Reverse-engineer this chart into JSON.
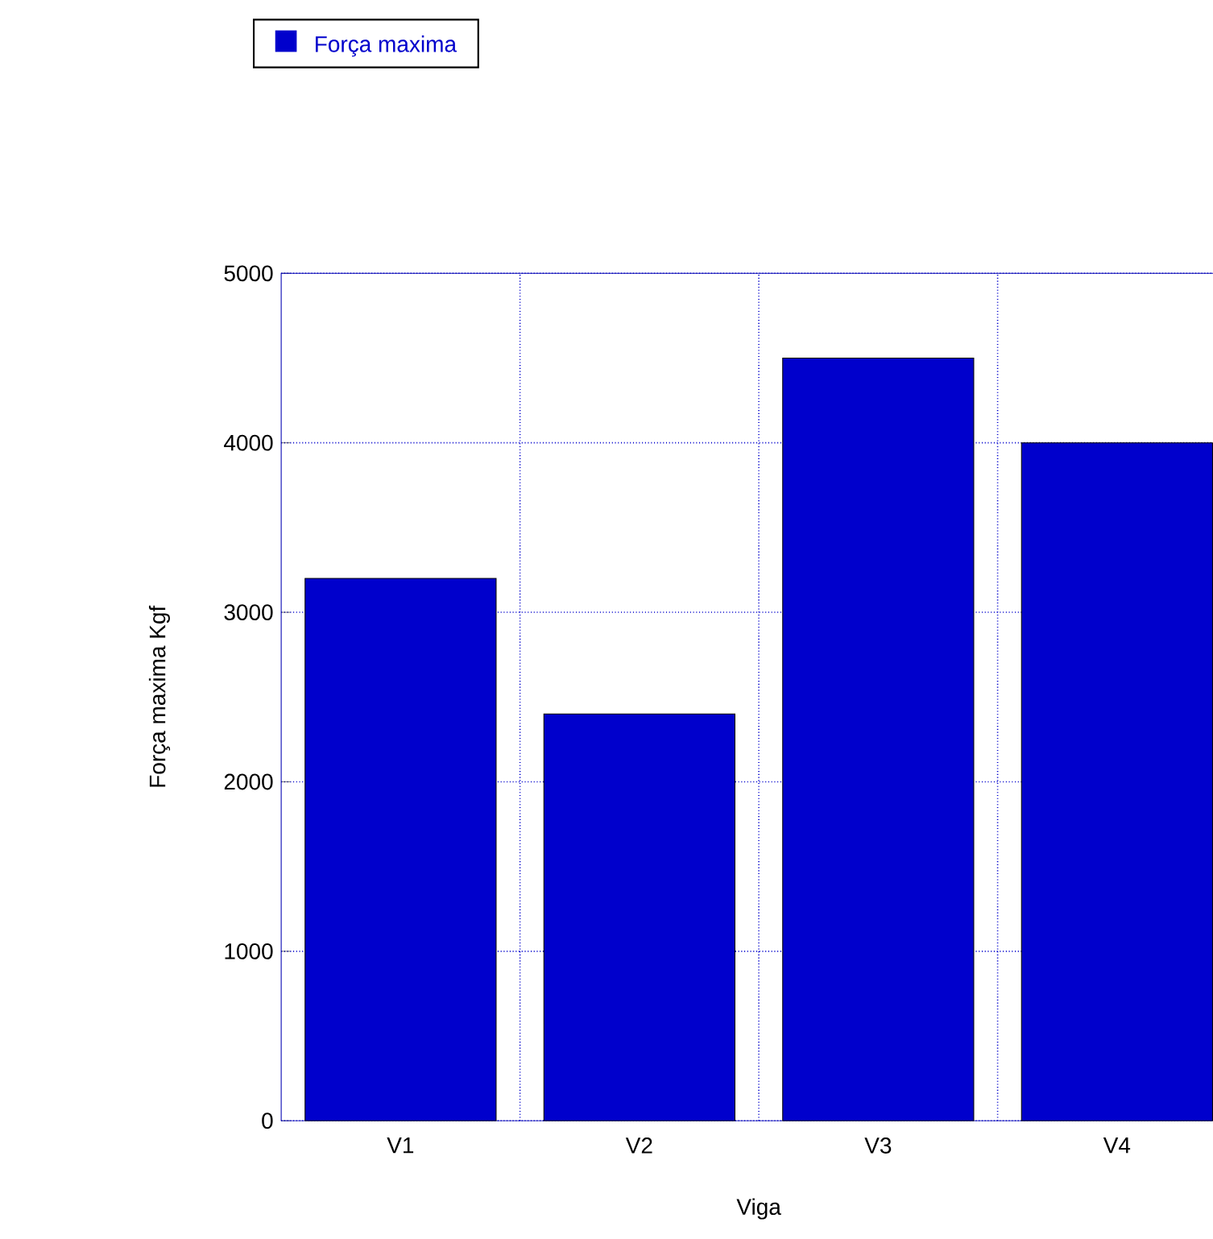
{
  "chart_data": {
    "type": "bar",
    "xlabel": "Viga",
    "ylabel": "Força maxima Kgf",
    "categories": [
      "V1",
      "V2",
      "V3",
      "V4"
    ],
    "series": [
      {
        "name": "Força maxima",
        "color": "#0000cc",
        "values": [
          3200,
          2400,
          4500,
          4000
        ]
      }
    ],
    "ylim": [
      0,
      5000
    ],
    "yticks": [
      0,
      1000,
      2000,
      3000,
      4000,
      5000
    ],
    "grid": true,
    "legend": "top left"
  }
}
